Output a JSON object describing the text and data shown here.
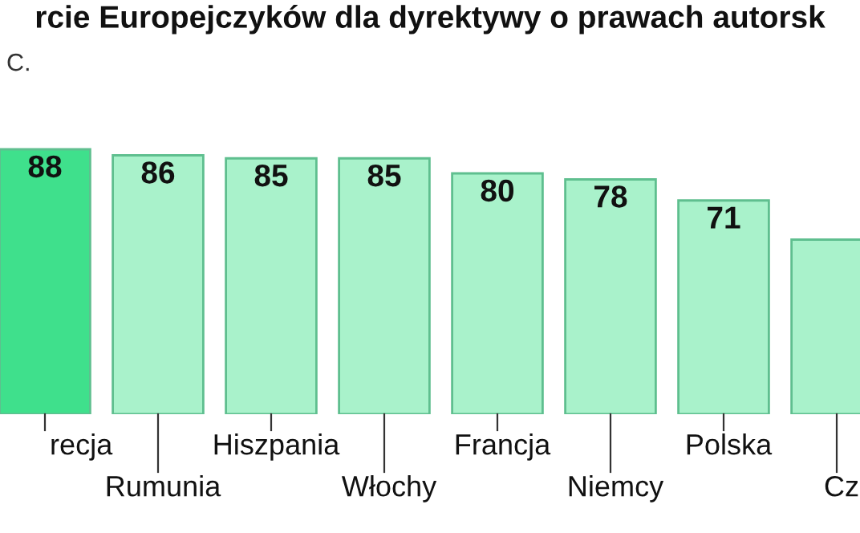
{
  "chart_data": {
    "type": "bar",
    "title": "rcie Europejczyków dla dyrektywy o prawach autorsk",
    "subtitle": "C.",
    "categories": [
      "recja",
      "Rumunia",
      "Hiszpania",
      "Włochy",
      "Francja",
      "Niemcy",
      "Polska",
      "Cz"
    ],
    "values": [
      88,
      86,
      85,
      85,
      80,
      78,
      71,
      58
    ],
    "value_labels": [
      "88",
      "86",
      "85",
      "85",
      "80",
      "78",
      "71",
      null
    ],
    "colors": [
      "#3fe08c",
      "#a9f2cb",
      "#a9f2cb",
      "#a9f2cb",
      "#a9f2cb",
      "#a9f2cb",
      "#a9f2cb",
      "#a9f2cb"
    ]
  }
}
